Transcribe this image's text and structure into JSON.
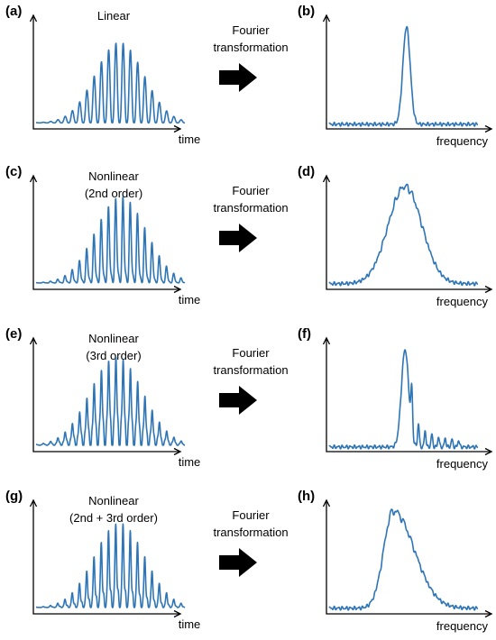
{
  "rows": [
    {
      "time_panel": {
        "label": "(a)",
        "title_lines": [
          "Linear"
        ],
        "xlabel": "time",
        "variant": "linear"
      },
      "transform_label_lines": [
        "Fourier",
        "transformation"
      ],
      "freq_panel": {
        "label": "(b)",
        "xlabel": "frequency",
        "variant": "narrow"
      }
    },
    {
      "time_panel": {
        "label": "(c)",
        "title_lines": [
          "Nonlinear",
          "(2nd order)"
        ],
        "xlabel": "time",
        "variant": "second"
      },
      "transform_label_lines": [
        "Fourier",
        "transformation"
      ],
      "freq_panel": {
        "label": "(d)",
        "xlabel": "frequency",
        "variant": "broad"
      }
    },
    {
      "time_panel": {
        "label": "(e)",
        "title_lines": [
          "Nonlinear",
          "(3rd order)"
        ],
        "xlabel": "time",
        "variant": "third"
      },
      "transform_label_lines": [
        "Fourier",
        "transformation"
      ],
      "freq_panel": {
        "label": "(f)",
        "xlabel": "frequency",
        "variant": "sidebands"
      }
    },
    {
      "time_panel": {
        "label": "(g)",
        "title_lines": [
          "Nonlinear",
          "(2nd + 3rd order)"
        ],
        "xlabel": "time",
        "variant": "both"
      },
      "transform_label_lines": [
        "Fourier",
        "transformation"
      ],
      "freq_panel": {
        "label": "(h)",
        "xlabel": "frequency",
        "variant": "skewed"
      }
    }
  ],
  "colors": {
    "signal": "#2e75b6",
    "axis": "#000000",
    "arrow": "#000000"
  },
  "icons": {
    "transform_arrow": "right-arrow-icon"
  }
}
